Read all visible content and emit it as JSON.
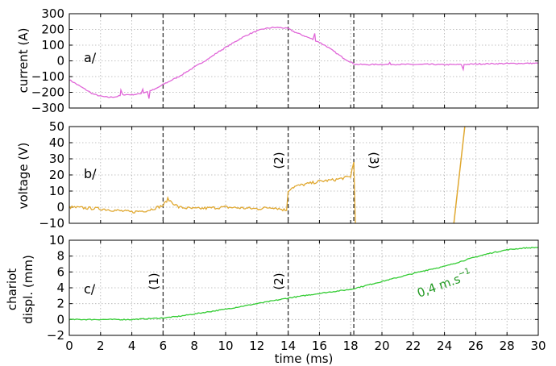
{
  "colors": {
    "current": "#e066d8",
    "voltage": "#e0a830",
    "displacement": "#33cc33",
    "annotation": "#229922"
  },
  "chart_data": [
    {
      "type": "line",
      "id": "current",
      "panel_label": "a/",
      "ylabel": "current (A)",
      "xlim": [
        0,
        30
      ],
      "ylim": [
        -300,
        300
      ],
      "yticks": [
        300,
        200,
        100,
        0,
        -100,
        -200,
        -300
      ],
      "grid": true,
      "series": [
        {
          "x": [
            0,
            0.5,
            1,
            1.5,
            2,
            2.5,
            3,
            3.5,
            4,
            4.5,
            5,
            5.5,
            6,
            6.5,
            7,
            7.5,
            8,
            8.5,
            9,
            9.5,
            10,
            10.5,
            11,
            11.5,
            12,
            12.5,
            13,
            13.5,
            14,
            14.5,
            15,
            15.5,
            16,
            16.5,
            17,
            17.5,
            18,
            18.3,
            19,
            20,
            21,
            22,
            23,
            24,
            25,
            26,
            27,
            28,
            29,
            30
          ],
          "y": [
            -120,
            -150,
            -180,
            -210,
            -225,
            -232,
            -228,
            -215,
            -215,
            -210,
            -195,
            -180,
            -150,
            -125,
            -100,
            -70,
            -40,
            -10,
            20,
            55,
            85,
            115,
            145,
            170,
            190,
            205,
            212,
            212,
            205,
            180,
            160,
            140,
            118,
            90,
            55,
            20,
            -8,
            -22,
            -24,
            -22,
            -22,
            -23,
            -22,
            -24,
            -23,
            -20,
            -18,
            -17,
            -16,
            -15
          ],
          "spikes": [
            [
              3.3,
              -185
            ],
            [
              4.7,
              -180
            ],
            [
              5.1,
              -240
            ],
            [
              15.7,
              175
            ],
            [
              20.5,
              -10
            ],
            [
              25.2,
              -55
            ]
          ]
        }
      ]
    },
    {
      "type": "line",
      "id": "voltage",
      "panel_label": "b/",
      "ylabel": "voltage (V)",
      "xlim": [
        0,
        30
      ],
      "ylim": [
        -10,
        50
      ],
      "yticks": [
        50,
        40,
        30,
        20,
        10,
        0,
        -10
      ],
      "grid": true,
      "series": [
        {
          "x": [
            0,
            2,
            4,
            5,
            6,
            6.3,
            7,
            8,
            10,
            12,
            13,
            13.9,
            14.0,
            14.2,
            14.5,
            15,
            16,
            17,
            18,
            18.1,
            18.2,
            18.3
          ],
          "y": [
            0,
            -1,
            -3,
            -2,
            1,
            5,
            0,
            -1,
            0,
            -1,
            0,
            -2,
            10,
            12,
            13,
            14,
            16,
            17,
            19,
            24,
            28,
            -10
          ],
          "rise": [
            [
              24.6,
              -10
            ],
            [
              25.3,
              50
            ]
          ]
        }
      ]
    },
    {
      "type": "line",
      "id": "displacement",
      "panel_label": "c/",
      "ylabel": [
        "chariot",
        "displ. (mm)"
      ],
      "xlabel": "time (ms)",
      "xlim": [
        0,
        30
      ],
      "ylim": [
        -2,
        10
      ],
      "yticks": [
        10,
        8,
        6,
        4,
        2,
        0,
        -2
      ],
      "xticks": [
        0,
        2,
        4,
        6,
        8,
        10,
        12,
        14,
        16,
        18,
        20,
        22,
        24,
        26,
        28,
        30
      ],
      "grid": true,
      "series": [
        {
          "x": [
            0,
            2,
            4,
            5,
            6,
            7,
            8,
            10,
            12,
            14,
            16,
            18,
            19,
            20,
            21,
            22,
            23,
            24,
            25,
            26,
            27,
            28,
            29,
            30
          ],
          "y": [
            0,
            0,
            0,
            0.1,
            0.2,
            0.4,
            0.7,
            1.3,
            2.0,
            2.7,
            3.3,
            3.8,
            4.3,
            4.8,
            5.3,
            5.8,
            6.3,
            6.7,
            7.3,
            7.9,
            8.4,
            8.8,
            9.0,
            9.1
          ],
          "annotation": "0,4 m.s",
          "annotation_sup": "−1"
        }
      ]
    }
  ],
  "markers": {
    "times_ms": [
      6,
      14,
      18.2
    ],
    "labels": [
      "(1)",
      "(2)",
      "(3)"
    ]
  }
}
